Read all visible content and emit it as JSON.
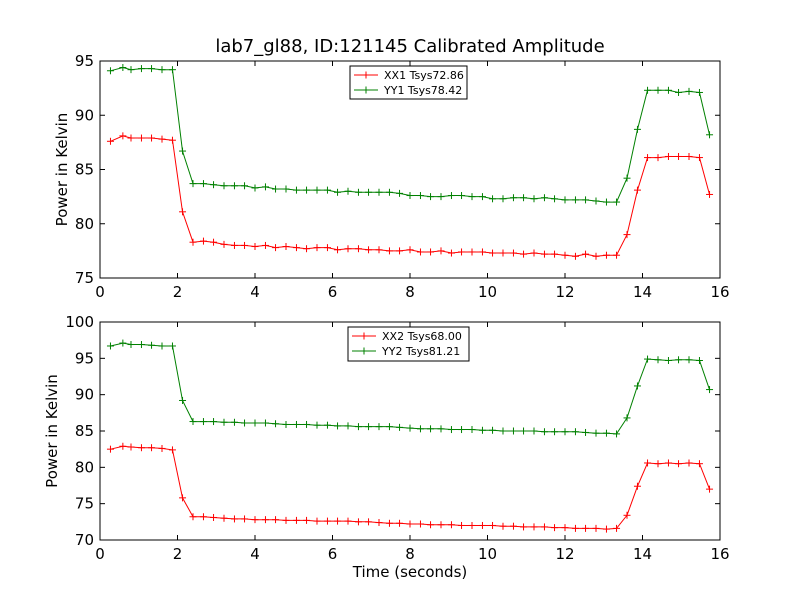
{
  "title": "lab7_gl88, ID:121145 Calibrated Amplitude",
  "chart_data": [
    {
      "type": "line",
      "xlabel": "",
      "ylabel": "Power in Kelvin",
      "xlim": [
        0,
        16
      ],
      "ylim": [
        75,
        95
      ],
      "xticks": [
        0,
        2,
        4,
        6,
        8,
        10,
        12,
        14,
        16
      ],
      "yticks": [
        75,
        80,
        85,
        90,
        95
      ],
      "grid": false,
      "legend": "top-center",
      "x": [
        0.27,
        0.59,
        0.8,
        1.07,
        1.33,
        1.6,
        1.87,
        2.13,
        2.4,
        2.67,
        2.93,
        3.2,
        3.47,
        3.73,
        4.0,
        4.27,
        4.53,
        4.8,
        5.07,
        5.33,
        5.6,
        5.87,
        6.13,
        6.4,
        6.67,
        6.93,
        7.2,
        7.47,
        7.73,
        8.0,
        8.27,
        8.53,
        8.8,
        9.07,
        9.33,
        9.6,
        9.87,
        10.13,
        10.4,
        10.67,
        10.93,
        11.2,
        11.47,
        11.73,
        12.0,
        12.27,
        12.53,
        12.8,
        13.07,
        13.33,
        13.6,
        13.87,
        14.13,
        14.4,
        14.67,
        14.93,
        15.2,
        15.47,
        15.73
      ],
      "series": [
        {
          "name": "XX1 Tsys72.86",
          "color": "#ff0000",
          "values": [
            87.6,
            88.1,
            87.9,
            87.9,
            87.9,
            87.8,
            87.7,
            81.1,
            78.3,
            78.4,
            78.3,
            78.1,
            78.0,
            78.0,
            77.9,
            78.0,
            77.8,
            77.9,
            77.8,
            77.7,
            77.8,
            77.8,
            77.6,
            77.7,
            77.7,
            77.6,
            77.6,
            77.5,
            77.5,
            77.6,
            77.4,
            77.4,
            77.5,
            77.3,
            77.4,
            77.4,
            77.4,
            77.3,
            77.3,
            77.3,
            77.2,
            77.3,
            77.2,
            77.2,
            77.1,
            77.0,
            77.2,
            77.0,
            77.1,
            77.1,
            79.0,
            83.1,
            86.1,
            86.1,
            86.2,
            86.2,
            86.2,
            86.1,
            82.7
          ]
        },
        {
          "name": "YY1 Tsys78.42",
          "color": "#008000",
          "values": [
            94.1,
            94.4,
            94.2,
            94.3,
            94.3,
            94.2,
            94.2,
            86.7,
            83.7,
            83.7,
            83.6,
            83.5,
            83.5,
            83.5,
            83.3,
            83.4,
            83.2,
            83.2,
            83.1,
            83.1,
            83.1,
            83.1,
            82.9,
            83.0,
            82.9,
            82.9,
            82.9,
            82.9,
            82.8,
            82.6,
            82.6,
            82.5,
            82.5,
            82.6,
            82.6,
            82.5,
            82.5,
            82.3,
            82.3,
            82.4,
            82.4,
            82.3,
            82.4,
            82.3,
            82.2,
            82.2,
            82.2,
            82.1,
            82.0,
            82.0,
            84.2,
            88.7,
            92.3,
            92.3,
            92.3,
            92.1,
            92.2,
            92.1,
            88.2
          ]
        }
      ]
    },
    {
      "type": "line",
      "xlabel": "Time (seconds)",
      "ylabel": "Power in Kelvin",
      "xlim": [
        0,
        16
      ],
      "ylim": [
        70,
        100
      ],
      "xticks": [
        0,
        2,
        4,
        6,
        8,
        10,
        12,
        14,
        16
      ],
      "yticks": [
        70,
        75,
        80,
        85,
        90,
        95,
        100
      ],
      "grid": false,
      "legend": "top-center",
      "x": [
        0.27,
        0.59,
        0.8,
        1.07,
        1.33,
        1.6,
        1.87,
        2.13,
        2.4,
        2.67,
        2.93,
        3.2,
        3.47,
        3.73,
        4.0,
        4.27,
        4.53,
        4.8,
        5.07,
        5.33,
        5.6,
        5.87,
        6.13,
        6.4,
        6.67,
        6.93,
        7.2,
        7.47,
        7.73,
        8.0,
        8.27,
        8.53,
        8.8,
        9.07,
        9.33,
        9.6,
        9.87,
        10.13,
        10.4,
        10.67,
        10.93,
        11.2,
        11.47,
        11.73,
        12.0,
        12.27,
        12.53,
        12.8,
        13.07,
        13.33,
        13.6,
        13.87,
        14.13,
        14.4,
        14.67,
        14.93,
        15.2,
        15.47,
        15.73
      ],
      "series": [
        {
          "name": "XX2 Tsys68.00",
          "color": "#ff0000",
          "values": [
            82.5,
            82.9,
            82.8,
            82.7,
            82.7,
            82.6,
            82.4,
            75.8,
            73.2,
            73.2,
            73.1,
            73.0,
            72.9,
            72.9,
            72.8,
            72.8,
            72.8,
            72.7,
            72.7,
            72.7,
            72.6,
            72.6,
            72.6,
            72.6,
            72.5,
            72.5,
            72.4,
            72.3,
            72.3,
            72.2,
            72.2,
            72.1,
            72.1,
            72.1,
            72.0,
            72.0,
            72.0,
            72.0,
            71.9,
            71.9,
            71.8,
            71.8,
            71.8,
            71.7,
            71.7,
            71.6,
            71.6,
            71.6,
            71.5,
            71.6,
            73.4,
            77.4,
            80.6,
            80.5,
            80.6,
            80.5,
            80.6,
            80.5,
            77.0
          ]
        },
        {
          "name": "YY2 Tsys81.21",
          "color": "#008000",
          "values": [
            96.7,
            97.1,
            96.9,
            96.9,
            96.8,
            96.7,
            96.7,
            89.2,
            86.3,
            86.3,
            86.3,
            86.2,
            86.2,
            86.1,
            86.1,
            86.1,
            86.0,
            85.9,
            85.9,
            85.9,
            85.8,
            85.8,
            85.7,
            85.7,
            85.6,
            85.6,
            85.6,
            85.6,
            85.5,
            85.4,
            85.3,
            85.3,
            85.3,
            85.2,
            85.2,
            85.2,
            85.1,
            85.1,
            85.0,
            85.0,
            85.0,
            85.0,
            84.9,
            84.9,
            84.9,
            84.9,
            84.8,
            84.7,
            84.7,
            84.6,
            86.8,
            91.2,
            94.9,
            94.8,
            94.7,
            94.8,
            94.8,
            94.7,
            90.7
          ]
        }
      ]
    }
  ]
}
